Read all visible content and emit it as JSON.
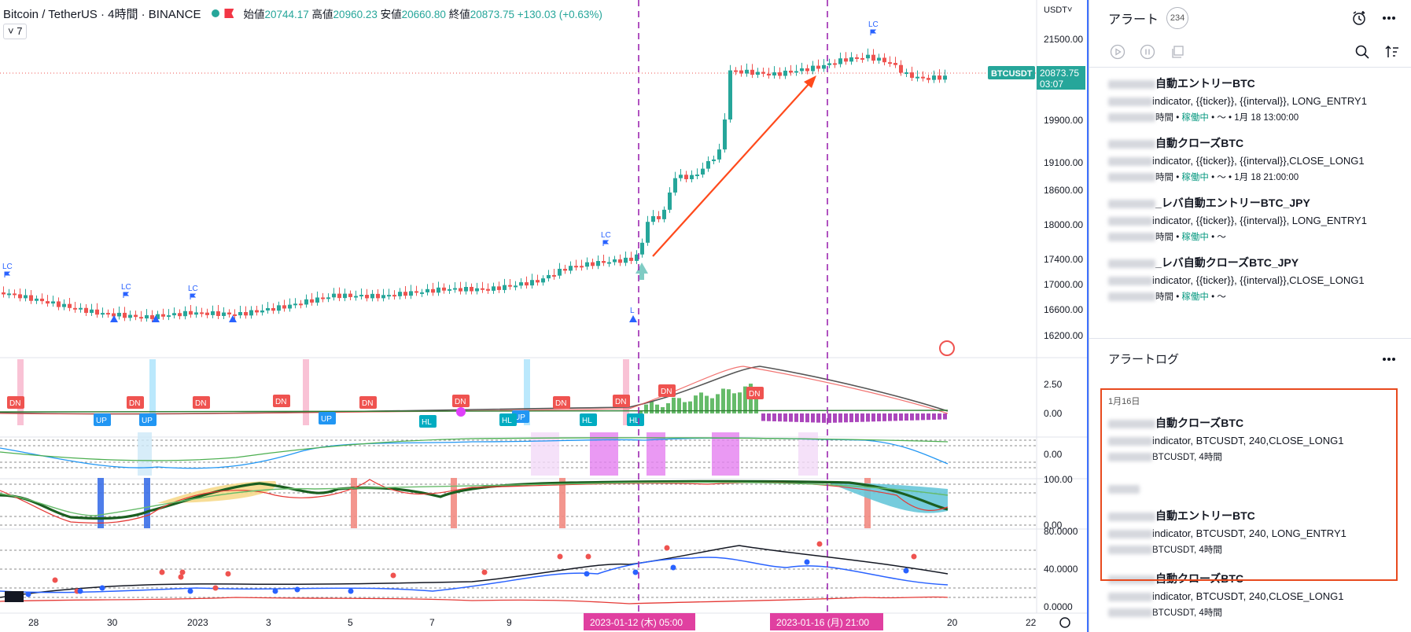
{
  "header": {
    "symbol_title": "Bitcoin / TetherUS · 4時間 · BINANCE",
    "open_label": "始値",
    "open": "20744.17",
    "high_label": "高値",
    "high": "20960.23",
    "low_label": "安値",
    "low": "20660.80",
    "close_label": "終値",
    "close": "20873.75",
    "change": "+130.03 (+0.63%)",
    "interval_chip": "7"
  },
  "price_axis": {
    "currency": "USDT˅",
    "labels": [
      "21500.00",
      "19900.00",
      "19100.00",
      "18600.00",
      "18000.00",
      "17400.00",
      "17000.00",
      "16600.00",
      "16200.00"
    ],
    "last_symbol": "BTCUSDT",
    "last_price": "20873.75",
    "countdown": "03:07"
  },
  "indicator_axis": {
    "macd": [
      "2.50",
      "0.00"
    ],
    "osc": [
      "0.00"
    ],
    "stoch": [
      "100.00",
      "0.00"
    ],
    "dmi": [
      "80.0000",
      "40.0000",
      "0.0000"
    ]
  },
  "time_axis": [
    "28",
    "30",
    "2023",
    "3",
    "5",
    "7",
    "9",
    "20",
    "22"
  ],
  "crosshair": {
    "left_label": "2023-01-12 (木)   05:00",
    "right_label": "2023-01-16 (月)   21:00"
  },
  "markers": {
    "lc": "LC",
    "l": "L",
    "dn": "DN",
    "up": "UP",
    "hl": "HL"
  },
  "colors": {
    "up": "#26a69a",
    "down": "#ef5350",
    "accent": "#2962ff",
    "highlight": "#e84a1e",
    "crosshair": "#9c27b0"
  },
  "sidebar": {
    "title": "アラート",
    "count": "234",
    "alerts": [
      {
        "name": "自動エントリーBTC",
        "desc": "indicator, {{ticker}}, {{interval}}, LONG_ENTRY1",
        "meta_a": "時間",
        "status": "稼働中",
        "time": "1月 18 13:00:00"
      },
      {
        "name": "自動クローズBTC",
        "desc": "indicator, {{ticker}}, {{interval}},CLOSE_LONG1",
        "meta_a": "時間",
        "status": "稼働中",
        "time": "1月 18 21:00:00"
      },
      {
        "name": "_レバ自動エントリーBTC_JPY",
        "desc": "indicator, {{ticker}}, {{interval}}, LONG_ENTRY1",
        "meta_a": "時間",
        "status": "稼働中",
        "time": ""
      },
      {
        "name": "_レバ自動クローズBTC_JPY",
        "desc": "indicator, {{ticker}}, {{interval}},CLOSE_LONG1",
        "meta_a": "時間",
        "status": "稼働中",
        "time": ""
      }
    ],
    "log_title": "アラートログ",
    "log_date": "1月16日",
    "log": [
      {
        "name": "自動クローズBTC",
        "desc": "indicator, BTCUSDT, 240,CLOSE_LONG1",
        "meta": "BTCUSDT, 4時間"
      },
      {
        "name": "自動エントリーBTC",
        "desc": "indicator, BTCUSDT, 240, LONG_ENTRY1",
        "meta": "BTCUSDT, 4時間"
      },
      {
        "name": "自動クローズBTC",
        "desc": "indicator, BTCUSDT, 240,CLOSE_LONG1",
        "meta": "BTCUSDT, 4時間"
      }
    ]
  }
}
